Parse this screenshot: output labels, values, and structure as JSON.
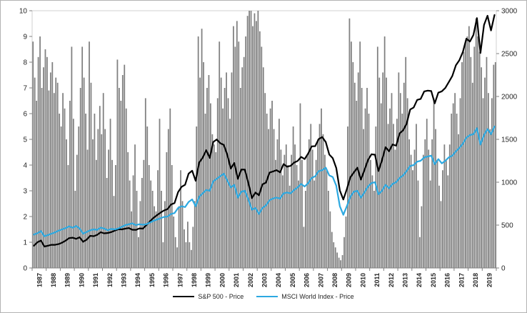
{
  "chart_data": {
    "type": "combo-bar-line",
    "title": "",
    "xlabel": "",
    "ylabel_left": "",
    "ylabel_right": "",
    "grid": false,
    "legend_position": "bottom-center",
    "x_years": [
      "1987",
      "1988",
      "1989",
      "1990",
      "1991",
      "1992",
      "1993",
      "1994",
      "1995",
      "1996",
      "1997",
      "1998",
      "1999",
      "2000",
      "2001",
      "2002",
      "2003",
      "2004",
      "2005",
      "2006",
      "2007",
      "2008",
      "2009",
      "2010",
      "2011",
      "2012",
      "2013",
      "2014",
      "2015",
      "2016",
      "2017",
      "2018",
      "2019"
    ],
    "left_axis": {
      "min": 0,
      "max": 10,
      "step": 1
    },
    "right_axis": {
      "min": 0,
      "max": 3000,
      "step": 500
    },
    "bars": {
      "name": "gray-background-bars",
      "axis": "left",
      "color": "#808080",
      "values": [
        8.8,
        7.4,
        6.5,
        8.2,
        9.0,
        7.0,
        7.8,
        8.5,
        8.2,
        6.9,
        7.6,
        8.0,
        6.8,
        7.4,
        7.2,
        6.0,
        5.5,
        6.8,
        6.2,
        5.0,
        4.0,
        6.5,
        8.6,
        5.8,
        3.0,
        4.4,
        5.5,
        7.0,
        8.6,
        7.4,
        6.0,
        4.6,
        8.8,
        7.2,
        5.0,
        6.0,
        4.2,
        5.4,
        6.3,
        5.2,
        6.8,
        5.4,
        3.5,
        4.6,
        5.8,
        4.2,
        2.8,
        4.0,
        8.1,
        7.0,
        6.5,
        7.5,
        7.9,
        6.2,
        4.5,
        3.4,
        2.2,
        3.6,
        4.8,
        3.0,
        1.2,
        2.6,
        3.5,
        4.2,
        6.6,
        5.5,
        4.0,
        3.4,
        3.0,
        2.4,
        2.2,
        3.8,
        5.8,
        3.0,
        1.0,
        2.6,
        4.5,
        5.4,
        6.2,
        4.0,
        2.0,
        1.2,
        0.8,
        2.4,
        3.8,
        2.6,
        1.5,
        1.0,
        1.8,
        1.0,
        0.7,
        1.6,
        2.6,
        5.5,
        9.0,
        7.4,
        9.3,
        8.0,
        6.0,
        7.0,
        7.5,
        6.4,
        5.2,
        4.8,
        4.5,
        6.6,
        8.8,
        7.4,
        6.2,
        7.0,
        7.6,
        6.6,
        5.8,
        7.6,
        9.4,
        8.6,
        9.6,
        8.8,
        7.0,
        7.8,
        8.2,
        9.0,
        9.8,
        10.0,
        10.0,
        9.4,
        9.9,
        9.6,
        10.0,
        9.2,
        8.6,
        7.8,
        6.8,
        6.0,
        5.4,
        6.2,
        6.5,
        5.4,
        4.2,
        5.0,
        5.8,
        4.6,
        3.6,
        4.4,
        4.8,
        4.0,
        3.2,
        4.4,
        5.5,
        4.8,
        4.0,
        3.4,
        6.4,
        4.2,
        1.6,
        3.0,
        4.4,
        5.0,
        5.6,
        4.6,
        3.4,
        4.2,
        5.0,
        5.6,
        6.2,
        5.2,
        4.4,
        3.8,
        3.0,
        2.2,
        1.4,
        1.0,
        0.8,
        0.6,
        0.4,
        0.3,
        0.5,
        1.2,
        2.0,
        5.5,
        9.7,
        8.8,
        8.0,
        7.2,
        6.5,
        7.6,
        8.8,
        7.0,
        5.4,
        6.2,
        7.0,
        6.0,
        4.2,
        3.6,
        3.0,
        5.5,
        8.6,
        7.4,
        6.4,
        7.6,
        9.0,
        7.4,
        5.6,
        6.2,
        6.8,
        5.6,
        4.6,
        5.8,
        7.6,
        6.8,
        6.0,
        7.2,
        8.2,
        6.6,
        5.0,
        4.4,
        3.8,
        4.6,
        5.6,
        3.4,
        1.2,
        2.4,
        4.4,
        5.0,
        5.8,
        4.6,
        3.4,
        5.0,
        6.6,
        5.4,
        4.2,
        3.2,
        2.6,
        3.8,
        4.8,
        4.2,
        3.6,
        4.8,
        6.0,
        6.4,
        6.8,
        6.0,
        5.2,
        6.6,
        8.0,
        8.4,
        8.8,
        9.0,
        9.4,
        8.2,
        7.2,
        8.6,
        9.7,
        9.0,
        8.4,
        7.8,
        6.6,
        7.4,
        8.2,
        6.8,
        5.4,
        6.6,
        7.9,
        8.0
      ]
    },
    "series": [
      {
        "name": "S&P 500 - Price",
        "axis": "right",
        "color": "#000000",
        "values": [
          260,
          300,
          320,
          250,
          260,
          270,
          270,
          278,
          295,
          318,
          348,
          353,
          340,
          358,
          306,
          330,
          375,
          371,
          387,
          417,
          404,
          408,
          418,
          436,
          452,
          450,
          459,
          466,
          446,
          444,
          462,
          459,
          500,
          544,
          584,
          616,
          645,
          671,
          687,
          741,
          757,
          885,
          947,
          970,
          1100,
          1134,
          1017,
          1229,
          1286,
          1373,
          1283,
          1469,
          1499,
          1455,
          1436,
          1320,
          1160,
          1224,
          1040,
          1148,
          1147,
          990,
          815,
          880,
          848,
          975,
          996,
          1112,
          1126,
          1141,
          1115,
          1212,
          1181,
          1191,
          1229,
          1248,
          1295,
          1270,
          1336,
          1418,
          1421,
          1503,
          1527,
          1468,
          1323,
          1280,
          1166,
          903,
          798,
          919,
          1057,
          1115,
          1169,
          1031,
          1141,
          1258,
          1326,
          1321,
          1131,
          1258,
          1408,
          1362,
          1441,
          1426,
          1569,
          1606,
          1682,
          1848,
          1872,
          1960,
          1972,
          2059,
          2068,
          2063,
          1920,
          2044,
          2060,
          2099,
          2168,
          2239,
          2363,
          2423,
          2519,
          2674,
          2641,
          2718,
          2914,
          2507,
          2834,
          2942,
          2770,
          2950
        ]
      },
      {
        "name": "MSCI World Index - Price",
        "axis": "right",
        "color": "#2da9e1",
        "values": [
          390,
          405,
          430,
          370,
          385,
          400,
          415,
          435,
          450,
          465,
          485,
          470,
          490,
          460,
          400,
          420,
          440,
          450,
          445,
          470,
          460,
          440,
          455,
          450,
          460,
          480,
          500,
          510,
          520,
          500,
          510,
          505,
          510,
          530,
          550,
          565,
          580,
          595,
          600,
          630,
          640,
          700,
          720,
          710,
          770,
          800,
          720,
          830,
          870,
          910,
          900,
          1010,
          1040,
          1070,
          1100,
          1020,
          940,
          970,
          820,
          890,
          900,
          800,
          680,
          700,
          630,
          700,
          730,
          790,
          810,
          820,
          810,
          870,
          880,
          870,
          910,
          940,
          980,
          950,
          990,
          1050,
          1070,
          1130,
          1140,
          1170,
          1080,
          1060,
          960,
          720,
          620,
          720,
          830,
          890,
          900,
          820,
          880,
          950,
          990,
          1000,
          860,
          900,
          970,
          930,
          980,
          1000,
          1050,
          1080,
          1130,
          1190,
          1200,
          1240,
          1250,
          1290,
          1300,
          1310,
          1210,
          1270,
          1220,
          1250,
          1290,
          1310,
          1360,
          1400,
          1450,
          1520,
          1550,
          1560,
          1630,
          1440,
          1550,
          1620,
          1560,
          1650
        ]
      }
    ]
  }
}
